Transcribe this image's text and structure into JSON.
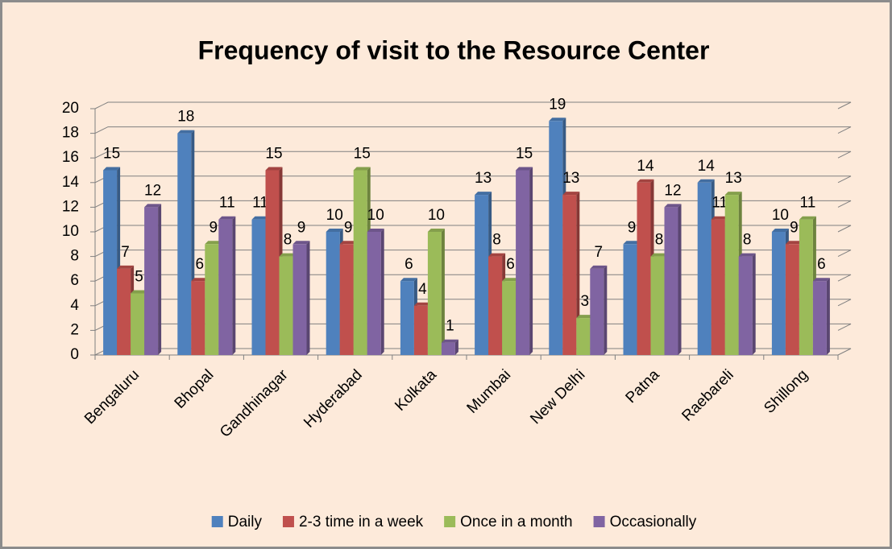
{
  "chart_data": {
    "type": "bar",
    "title": "Frequency of visit to the Resource Center",
    "categories": [
      "Bengaluru",
      "Bhopal",
      "Gandhinagar",
      "Hyderabad",
      "Kolkata",
      "Mumbai",
      "New Delhi",
      "Patna",
      "Raebareli",
      "Shillong"
    ],
    "series": [
      {
        "name": "Daily",
        "color": "#4f81bd",
        "values": [
          15,
          18,
          11,
          10,
          6,
          13,
          19,
          9,
          14,
          10
        ]
      },
      {
        "name": "2-3 time in a week",
        "color": "#c0504d",
        "values": [
          7,
          6,
          15,
          9,
          4,
          8,
          13,
          14,
          11,
          9
        ]
      },
      {
        "name": "Once in a month",
        "color": "#9bbb59",
        "values": [
          5,
          9,
          8,
          15,
          10,
          6,
          3,
          8,
          13,
          11
        ]
      },
      {
        "name": "Occasionally",
        "color": "#8064a2",
        "values": [
          12,
          11,
          9,
          10,
          1,
          15,
          7,
          12,
          8,
          6
        ]
      }
    ],
    "ylim": [
      0,
      20
    ],
    "yticks": [
      0,
      2,
      4,
      6,
      8,
      10,
      12,
      14,
      16,
      18,
      20
    ],
    "grid": true,
    "legend": "bottom"
  }
}
